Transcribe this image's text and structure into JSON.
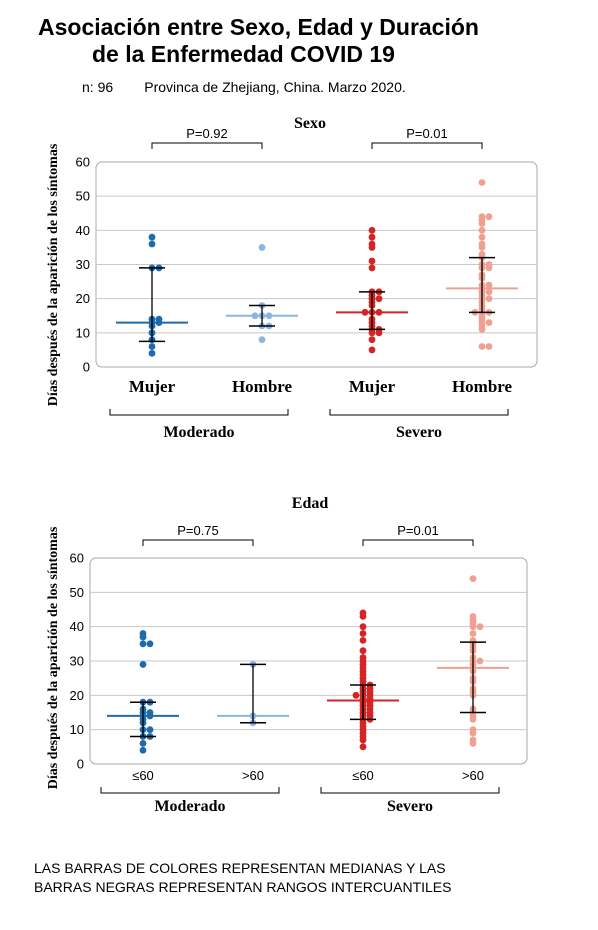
{
  "title": {
    "line1": "Asociación entre Sexo, Edad y Duración",
    "line2": "de la Enfermedad COVID 19"
  },
  "subtitle": {
    "n_label": "n: 96",
    "location": "Provinca de Zhejiang, China. Marzo 2020."
  },
  "footnote": {
    "line1": "LAS BARRAS DE COLORES REPRESENTAN MEDIANAS Y LAS",
    "line2": "BARRAS NEGRAS REPRESENTAN RANGOS INTERCUANTILES"
  },
  "colors": {
    "moderado_1": "#1f6aab",
    "moderado_2": "#8eb4e0",
    "severo_1": "#d42424",
    "severo_2": "#f0a090",
    "iqr": "#000000",
    "grid": "#c8c8c8"
  },
  "chart_data": [
    {
      "type": "scatter",
      "title": "Sexo",
      "ylabel": "Días después de la aparición de los síntomas",
      "ylim": [
        0,
        60
      ],
      "yticks": [
        0,
        10,
        20,
        30,
        40,
        50,
        60
      ],
      "grid": true,
      "groups": [
        {
          "name": "Moderado",
          "categories": [
            "Mujer",
            "Hombre"
          ],
          "p_value": "P=0.92"
        },
        {
          "name": "Severo",
          "categories": [
            "Mujer",
            "Hombre"
          ],
          "p_value": "P=0.01"
        }
      ],
      "series": [
        {
          "category": "Mujer",
          "group": "Moderado",
          "color_key": "moderado_1",
          "median": 13,
          "q1": 7.5,
          "q3": 29,
          "values": [
            38,
            36,
            29,
            29,
            14,
            14,
            13,
            13,
            12,
            10,
            8,
            6,
            4
          ]
        },
        {
          "category": "Hombre",
          "group": "Moderado",
          "color_key": "moderado_2",
          "median": 15,
          "q1": 12,
          "q3": 18,
          "values": [
            35,
            18,
            15,
            15,
            15,
            12,
            12,
            8
          ]
        },
        {
          "category": "Mujer",
          "group": "Severo",
          "color_key": "severo_1",
          "median": 16,
          "q1": 11,
          "q3": 22,
          "values": [
            40,
            38,
            36,
            35,
            31,
            29,
            22,
            22,
            21,
            20,
            20,
            19,
            18,
            16,
            16,
            16,
            14,
            13,
            12,
            11,
            11,
            10,
            10,
            8,
            5
          ]
        },
        {
          "category": "Hombre",
          "group": "Severo",
          "color_key": "severo_2",
          "median": 23,
          "q1": 16,
          "q3": 32,
          "values": [
            54,
            44,
            44,
            43,
            42,
            40,
            38,
            36,
            35,
            33,
            32,
            30,
            30,
            29,
            29,
            27,
            26,
            24,
            24,
            23,
            22,
            22,
            21,
            20,
            20,
            19,
            18,
            17,
            16,
            16,
            16,
            15,
            14,
            13,
            13,
            12,
            11,
            6,
            6
          ]
        }
      ]
    },
    {
      "type": "scatter",
      "title": "Edad",
      "ylabel": "Días después de la aparición de los síntomas",
      "ylim": [
        0,
        60
      ],
      "yticks": [
        0,
        10,
        20,
        30,
        40,
        50,
        60
      ],
      "grid": true,
      "groups": [
        {
          "name": "Moderado",
          "categories": [
            "≤60",
            ">60"
          ],
          "p_value": "P=0.75"
        },
        {
          "name": "Severo",
          "categories": [
            "≤60",
            ">60"
          ],
          "p_value": "P=0.01"
        }
      ],
      "series": [
        {
          "category": "≤60",
          "group": "Moderado",
          "color_key": "moderado_1",
          "median": 14,
          "q1": 8,
          "q3": 18,
          "values": [
            38,
            37,
            35,
            35,
            29,
            18,
            18,
            16,
            15,
            15,
            14,
            14,
            13,
            12,
            10,
            10,
            8,
            8,
            6,
            4
          ]
        },
        {
          "category": ">60",
          "group": "Moderado",
          "color_key": "moderado_2",
          "median": 14,
          "q1": 12,
          "q3": 29,
          "values": [
            29,
            14,
            12
          ]
        },
        {
          "category": "≤60",
          "group": "Severo",
          "color_key": "severo_1",
          "median": 18.5,
          "q1": 13,
          "q3": 23,
          "values": [
            44,
            43,
            40,
            38,
            36,
            33,
            31,
            30,
            29,
            28,
            27,
            26,
            25,
            24,
            23,
            23,
            22,
            22,
            21,
            21,
            20,
            20,
            20,
            19,
            19,
            18,
            18,
            17,
            17,
            16,
            16,
            15,
            15,
            14,
            14,
            13,
            13,
            12,
            11,
            10,
            9,
            8,
            7,
            5
          ]
        },
        {
          "category": ">60",
          "group": "Severo",
          "color_key": "severo_2",
          "median": 28,
          "q1": 15,
          "q3": 35.5,
          "values": [
            54,
            43,
            42,
            41,
            40,
            40,
            38,
            36,
            35,
            34,
            33,
            31,
            30,
            30,
            29,
            28,
            27,
            25,
            24,
            22,
            21,
            20,
            16,
            15,
            14,
            13,
            10,
            9,
            7,
            6
          ]
        }
      ]
    }
  ]
}
